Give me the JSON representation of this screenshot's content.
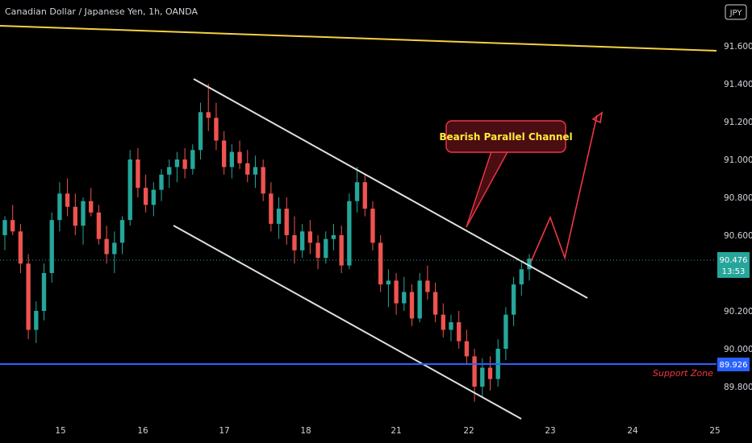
{
  "header": {
    "title": "Canadian Dollar / Japanese Yen, 1h, OANDA",
    "currency_badge": "JPY"
  },
  "colors": {
    "background": "#000000",
    "up": "#26a69a",
    "down": "#ef5350",
    "channel": "#e0e0e0",
    "trendline": "#f5d142",
    "support": "#2962ff",
    "projection": "#f23645",
    "callout_fill": "#4a0d12",
    "callout_text": "#ffeb3b"
  },
  "annotations": {
    "channel_label": "Bearish Parallel Channel",
    "support_label": "Support Zone"
  },
  "price_badges": {
    "last_price": "90.476",
    "countdown": "13:53",
    "support_price": "89.926"
  },
  "chart_data": {
    "type": "candlestick",
    "symbol": "CADJPY",
    "interval": "1h",
    "ylim": [
      89.6,
      91.75
    ],
    "y_ticks": [
      "91.600",
      "91.400",
      "91.200",
      "91.000",
      "90.800",
      "90.600",
      "90.200",
      "90.000",
      "89.800"
    ],
    "x_ticks": [
      "15",
      "16",
      "17",
      "18",
      "21",
      "22",
      "23",
      "24",
      "25"
    ],
    "last_price": 90.476,
    "support_level": 89.926,
    "trendline": {
      "from": [
        0,
        91.68
      ],
      "to": [
        1.0,
        91.58
      ]
    },
    "channel": {
      "upper": {
        "from": [
          "16.7",
          91.42
        ],
        "to": [
          "22.5",
          90.28
        ]
      },
      "lower": {
        "from": [
          "16.4",
          90.64
        ],
        "to": [
          "22.6",
          89.65
        ]
      }
    },
    "projection_path": [
      [
        90.47,
        90.74,
        90.47,
        91.27
      ]
    ],
    "ohlc": [
      [
        90.6,
        90.7,
        90.52,
        90.68
      ],
      [
        90.68,
        90.76,
        90.6,
        90.62
      ],
      [
        90.62,
        90.66,
        90.4,
        90.45
      ],
      [
        90.45,
        90.5,
        90.05,
        90.1
      ],
      [
        90.1,
        90.25,
        90.03,
        90.2
      ],
      [
        90.2,
        90.45,
        90.15,
        90.4
      ],
      [
        90.4,
        90.72,
        90.35,
        90.68
      ],
      [
        90.68,
        90.88,
        90.62,
        90.82
      ],
      [
        90.82,
        90.9,
        90.7,
        90.75
      ],
      [
        90.75,
        90.82,
        90.6,
        90.65
      ],
      [
        90.65,
        90.8,
        90.55,
        90.78
      ],
      [
        90.78,
        90.85,
        90.7,
        90.72
      ],
      [
        90.72,
        90.76,
        90.55,
        90.58
      ],
      [
        90.58,
        90.65,
        90.45,
        90.5
      ],
      [
        90.5,
        90.62,
        90.4,
        90.56
      ],
      [
        90.56,
        90.7,
        90.5,
        90.68
      ],
      [
        90.68,
        91.05,
        90.65,
        91.0
      ],
      [
        91.0,
        91.06,
        90.8,
        90.85
      ],
      [
        90.85,
        90.92,
        90.72,
        90.76
      ],
      [
        90.76,
        90.88,
        90.7,
        90.84
      ],
      [
        90.84,
        90.95,
        90.78,
        90.92
      ],
      [
        90.92,
        91.0,
        90.85,
        90.96
      ],
      [
        90.96,
        91.04,
        90.88,
        91.0
      ],
      [
        91.0,
        91.06,
        90.9,
        90.95
      ],
      [
        90.95,
        91.08,
        90.92,
        91.05
      ],
      [
        91.05,
        91.3,
        91.0,
        91.25
      ],
      [
        91.25,
        91.4,
        91.15,
        91.22
      ],
      [
        91.22,
        91.3,
        91.05,
        91.1
      ],
      [
        91.1,
        91.15,
        90.92,
        90.96
      ],
      [
        90.96,
        91.08,
        90.9,
        91.04
      ],
      [
        91.04,
        91.1,
        90.95,
        90.98
      ],
      [
        90.98,
        91.05,
        90.88,
        90.92
      ],
      [
        90.92,
        91.02,
        90.85,
        90.96
      ],
      [
        90.96,
        91.0,
        90.78,
        90.82
      ],
      [
        90.82,
        90.88,
        90.62,
        90.66
      ],
      [
        90.66,
        90.8,
        90.58,
        90.74
      ],
      [
        90.74,
        90.8,
        90.55,
        90.6
      ],
      [
        90.6,
        90.7,
        90.45,
        90.52
      ],
      [
        90.52,
        90.66,
        90.48,
        90.62
      ],
      [
        90.62,
        90.68,
        90.5,
        90.56
      ],
      [
        90.56,
        90.6,
        90.42,
        90.48
      ],
      [
        90.48,
        90.62,
        90.45,
        90.58
      ],
      [
        90.58,
        90.66,
        90.52,
        90.6
      ],
      [
        90.6,
        90.65,
        90.4,
        90.44
      ],
      [
        90.44,
        90.82,
        90.42,
        90.78
      ],
      [
        90.78,
        90.96,
        90.72,
        90.88
      ],
      [
        90.88,
        90.92,
        90.7,
        90.74
      ],
      [
        90.74,
        90.78,
        90.52,
        90.56
      ],
      [
        90.56,
        90.6,
        90.3,
        90.34
      ],
      [
        90.34,
        90.42,
        90.22,
        90.36
      ],
      [
        90.36,
        90.4,
        90.18,
        90.24
      ],
      [
        90.24,
        90.38,
        90.2,
        90.3
      ],
      [
        90.3,
        90.34,
        90.12,
        90.16
      ],
      [
        90.16,
        90.4,
        90.14,
        90.36
      ],
      [
        90.36,
        90.44,
        90.26,
        90.3
      ],
      [
        90.3,
        90.35,
        90.14,
        90.18
      ],
      [
        90.18,
        90.24,
        90.06,
        90.1
      ],
      [
        90.1,
        90.18,
        90.04,
        90.14
      ],
      [
        90.14,
        90.2,
        90.0,
        90.04
      ],
      [
        90.04,
        90.1,
        89.92,
        89.96
      ],
      [
        89.96,
        90.0,
        89.72,
        89.8
      ],
      [
        89.8,
        89.95,
        89.74,
        89.9
      ],
      [
        89.9,
        89.96,
        89.78,
        89.84
      ],
      [
        89.84,
        90.05,
        89.8,
        90.0
      ],
      [
        90.0,
        90.22,
        89.94,
        90.18
      ],
      [
        90.18,
        90.38,
        90.12,
        90.34
      ],
      [
        90.34,
        90.46,
        90.28,
        90.42
      ],
      [
        90.42,
        90.5,
        90.36,
        90.476
      ]
    ]
  }
}
